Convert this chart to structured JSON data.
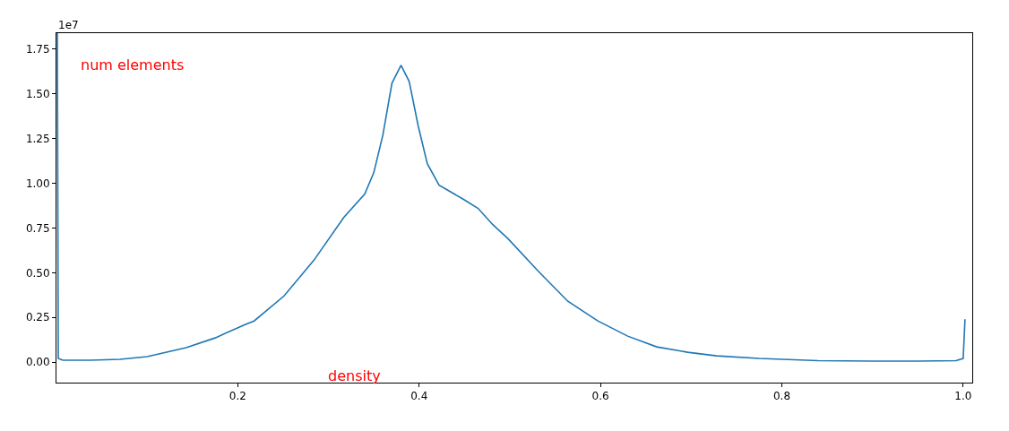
{
  "chart_data": {
    "type": "line",
    "annotations": [
      "1e7",
      "num elements",
      "density"
    ],
    "x": [
      0.001,
      0.002,
      0.007,
      0.037,
      0.07,
      0.1,
      0.143,
      0.175,
      0.208,
      0.218,
      0.251,
      0.284,
      0.317,
      0.34,
      0.35,
      0.36,
      0.37,
      0.38,
      0.389,
      0.399,
      0.409,
      0.422,
      0.432,
      0.449,
      0.465,
      0.481,
      0.498,
      0.531,
      0.564,
      0.597,
      0.63,
      0.662,
      0.696,
      0.728,
      0.775,
      0.84,
      0.9,
      0.95,
      0.992,
      1.0,
      1.002
    ],
    "series": [
      {
        "color": "#1f77b4",
        "values": [
          1.84,
          0.02,
          0.01,
          0.01,
          0.015,
          0.03,
          0.08,
          0.135,
          0.21,
          0.23,
          0.37,
          0.57,
          0.81,
          0.94,
          1.06,
          1.27,
          1.56,
          1.66,
          1.57,
          1.32,
          1.11,
          0.99,
          0.96,
          0.91,
          0.86,
          0.77,
          0.69,
          0.51,
          0.34,
          0.23,
          0.145,
          0.085,
          0.055,
          0.035,
          0.02,
          0.008,
          0.005,
          0.005,
          0.008,
          0.02,
          0.24
        ]
      }
    ],
    "xlim": [
      0,
      1.01
    ],
    "ylim": [
      -0.115,
      1.84
    ],
    "xticks": [
      0.2,
      0.4,
      0.6,
      0.8,
      {
        "value": 1,
        "label": "1.0"
      }
    ],
    "yticks": [
      {
        "value": 0,
        "label": "0.00"
      },
      0.25,
      {
        "value": 0.5,
        "label": "0.50"
      },
      0.75,
      {
        "value": 1,
        "label": "1.00"
      },
      1.25,
      {
        "value": 1.5,
        "label": "1.50"
      },
      1.75
    ],
    "grid": false,
    "marker": "none",
    "line_style": "solid"
  }
}
